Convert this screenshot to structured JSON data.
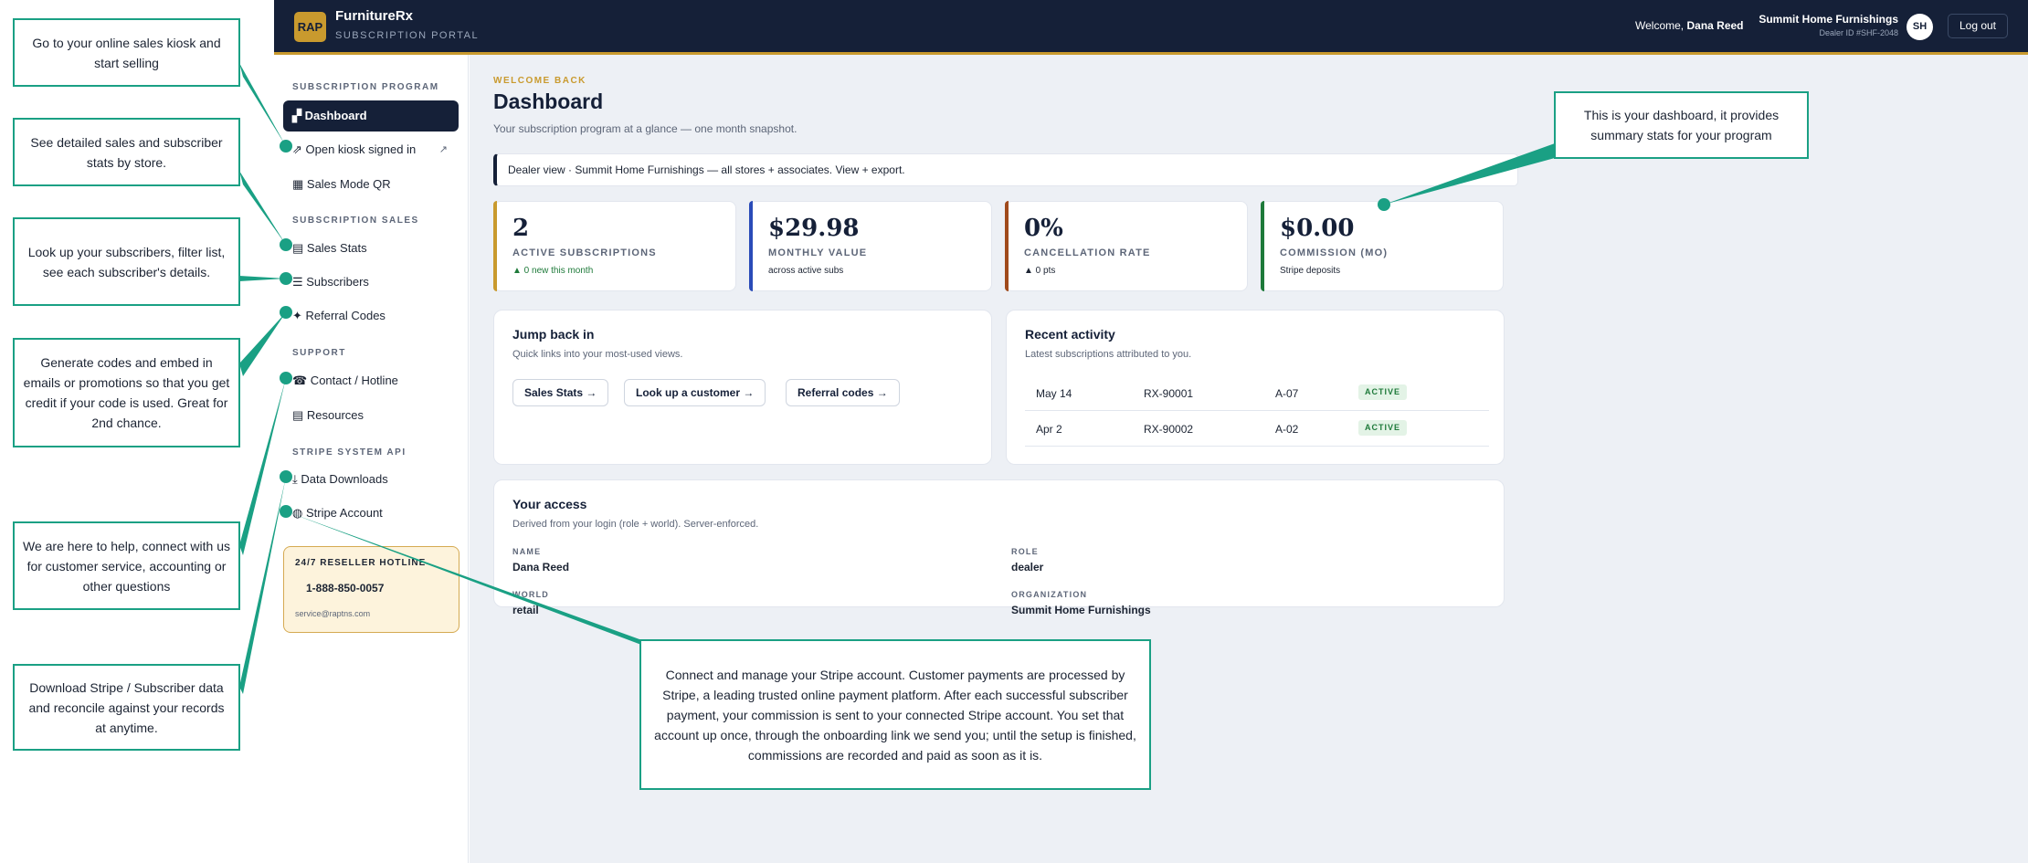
{
  "topbar": {
    "logo": "RAP",
    "brand_title": "FurnitureRx",
    "brand_sub": "SUBSCRIPTION PORTAL",
    "welcome_prefix": "Welcome,",
    "user_name": "Dana Reed",
    "org_name": "Summit Home Furnishings",
    "dealer_id": "Dealer ID #SHF-2048",
    "avatar_initials": "SH",
    "logout_label": "Log out"
  },
  "sidebar": {
    "sections": {
      "program": "SUBSCRIPTION PROGRAM",
      "sales": "SUBSCRIPTION SALES",
      "support": "SUPPORT",
      "stripe": "STRIPE SYSTEM API"
    },
    "items": {
      "dashboard": "▞ Dashboard",
      "kiosk": "⇗ Open kiosk signed in",
      "kiosk_ext": "↗",
      "sales_mode": "▦ Sales Mode QR",
      "sales_stats": "▤ Sales Stats",
      "subscribers": "☰ Subscribers",
      "referral": "✦ Referral Codes",
      "contact": "☎ Contact / Hotline",
      "resources": "▤ Resources",
      "downloads": "⤓ Data Downloads",
      "stripe_account": "◍ Stripe Account"
    },
    "hotline": {
      "title": "24/7 RESELLER HOTLINE",
      "phone": "1-888-850-0057",
      "email": "service@raptns.com"
    }
  },
  "main": {
    "eyebrow": "WELCOME BACK",
    "title": "Dashboard",
    "subtitle": "Your subscription program at a glance — one month snapshot.",
    "banner": "Dealer view · Summit Home Furnishings — all stores + associates. View + export.",
    "stats": [
      {
        "value": "2",
        "label": "ACTIVE SUBSCRIPTIONS",
        "note": "▲ 0 new this month",
        "color": "#c99a2e"
      },
      {
        "value": "$29.98",
        "label": "MONTHLY VALUE",
        "note": "across active subs",
        "color": "#2a4bb8"
      },
      {
        "value": "0%",
        "label": "CANCELLATION RATE",
        "note": "▲ 0 pts",
        "color": "#a04a1c"
      },
      {
        "value": "$0.00",
        "label": "COMMISSION (MO)",
        "note": "Stripe deposits",
        "color": "#1e7a3a"
      }
    ],
    "jump": {
      "title": "Jump back in",
      "subtitle": "Quick links into your most-used views.",
      "links": [
        "Sales Stats →",
        "Look up a customer →",
        "Referral codes →"
      ]
    },
    "activity": {
      "title": "Recent activity",
      "subtitle": "Latest subscriptions attributed to you.",
      "rows": [
        {
          "date": "May 14",
          "id": "RX-90001",
          "code": "A-07",
          "status": "ACTIVE"
        },
        {
          "date": "Apr 2",
          "id": "RX-90002",
          "code": "A-02",
          "status": "ACTIVE"
        }
      ]
    },
    "access": {
      "title": "Your access",
      "subtitle": "Derived from your login (role + world). Server-enforced.",
      "name_label": "NAME",
      "name_value": "Dana Reed",
      "role_label": "ROLE",
      "role_value": "dealer",
      "world_label": "WORLD",
      "world_value": "retail",
      "org_label": "ORGANIZATION",
      "org_value": "Summit Home Furnishings"
    }
  },
  "annotations": {
    "kiosk": "Go to your online sales kiosk and start selling",
    "stats": "See detailed sales and subscriber stats by store.",
    "subscribers": "Look up your subscribers, filter list, see each subscriber's details.",
    "codes": "Generate codes and embed in emails or promotions so that you get credit if your code is used. Great for 2nd chance.",
    "help": "We are here to help, connect with us for customer service, accounting or other questions",
    "download": "Download Stripe / Subscriber data and reconcile against your records at anytime.",
    "dashboard": "This is your dashboard, it provides summary stats for your program",
    "stripe": "Connect and manage your Stripe account. Customer payments are processed by Stripe, a leading trusted online payment platform. After each successful subscriber payment, your commission is sent to your connected Stripe account. You set that account up once, through the onboarding link we send you; until the setup is finished, commissions are recorded and paid as soon as it is."
  },
  "colors": {
    "navy": "#152038",
    "gold": "#c99a2e",
    "annotation": "#1aa084"
  }
}
